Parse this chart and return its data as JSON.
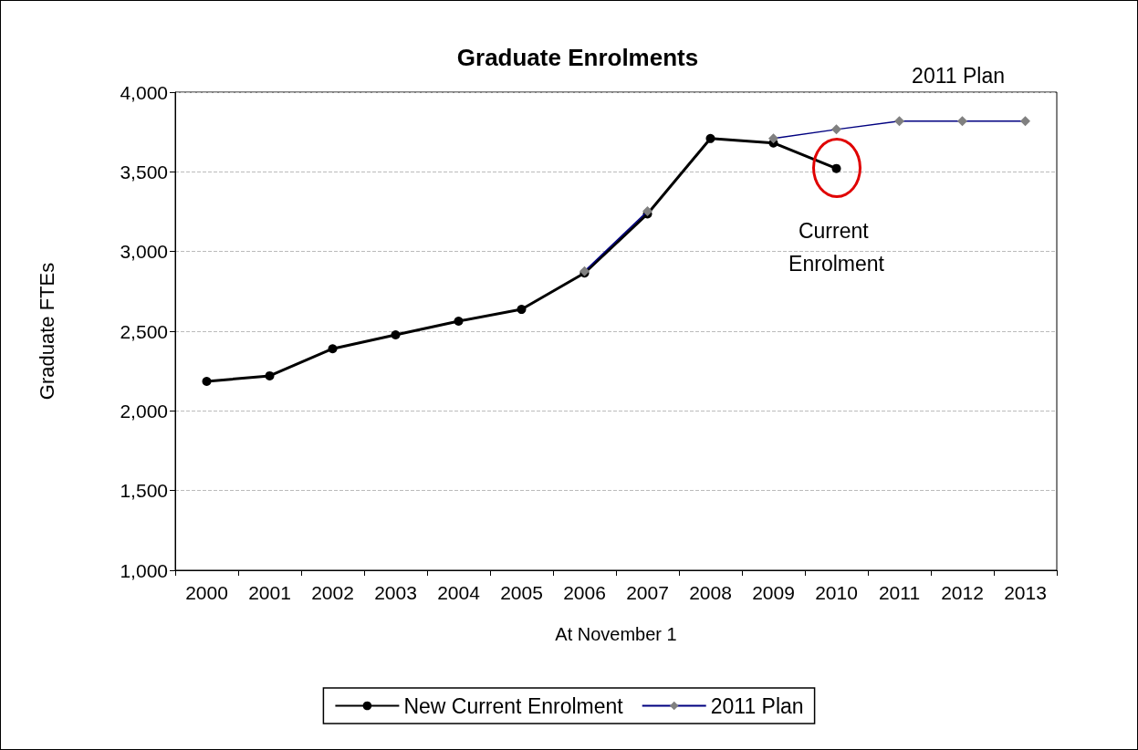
{
  "chart_data": {
    "type": "line",
    "title": "Graduate Enrolments",
    "xlabel": "At November 1",
    "ylabel": "Graduate FTEs",
    "categories": [
      "2000",
      "2001",
      "2002",
      "2003",
      "2004",
      "2005",
      "2006",
      "2007",
      "2008",
      "2009",
      "2010",
      "2011",
      "2012",
      "2013"
    ],
    "series": [
      {
        "name": "New Current Enrolment",
        "color": "#000000",
        "marker": "circle",
        "values": [
          2185,
          2220,
          2390,
          2477,
          2563,
          2637,
          2865,
          3236,
          3709,
          3681,
          3521,
          null,
          null,
          null
        ]
      },
      {
        "name": "2011 Plan",
        "color": "#000080",
        "marker": "diamond",
        "values": [
          null,
          null,
          null,
          null,
          null,
          null,
          2876,
          3253,
          null,
          3709,
          3766,
          3818,
          3818,
          3818
        ]
      }
    ],
    "ylim": [
      1000,
      4000
    ],
    "yticks": [
      {
        "value": 1000,
        "label": "1,000"
      },
      {
        "value": 1500,
        "label": "1,500"
      },
      {
        "value": 2000,
        "label": "2,000"
      },
      {
        "value": 2500,
        "label": "2,500"
      },
      {
        "value": 3000,
        "label": "3,000"
      },
      {
        "value": 3500,
        "label": "3,500"
      },
      {
        "value": 4000,
        "label": "4,000"
      }
    ],
    "grid": "y",
    "legend": "bottom",
    "annotations": [
      "2011 Plan",
      {
        "text": "Current Enrolment",
        "x": "2010",
        "y": 3521
      }
    ]
  }
}
